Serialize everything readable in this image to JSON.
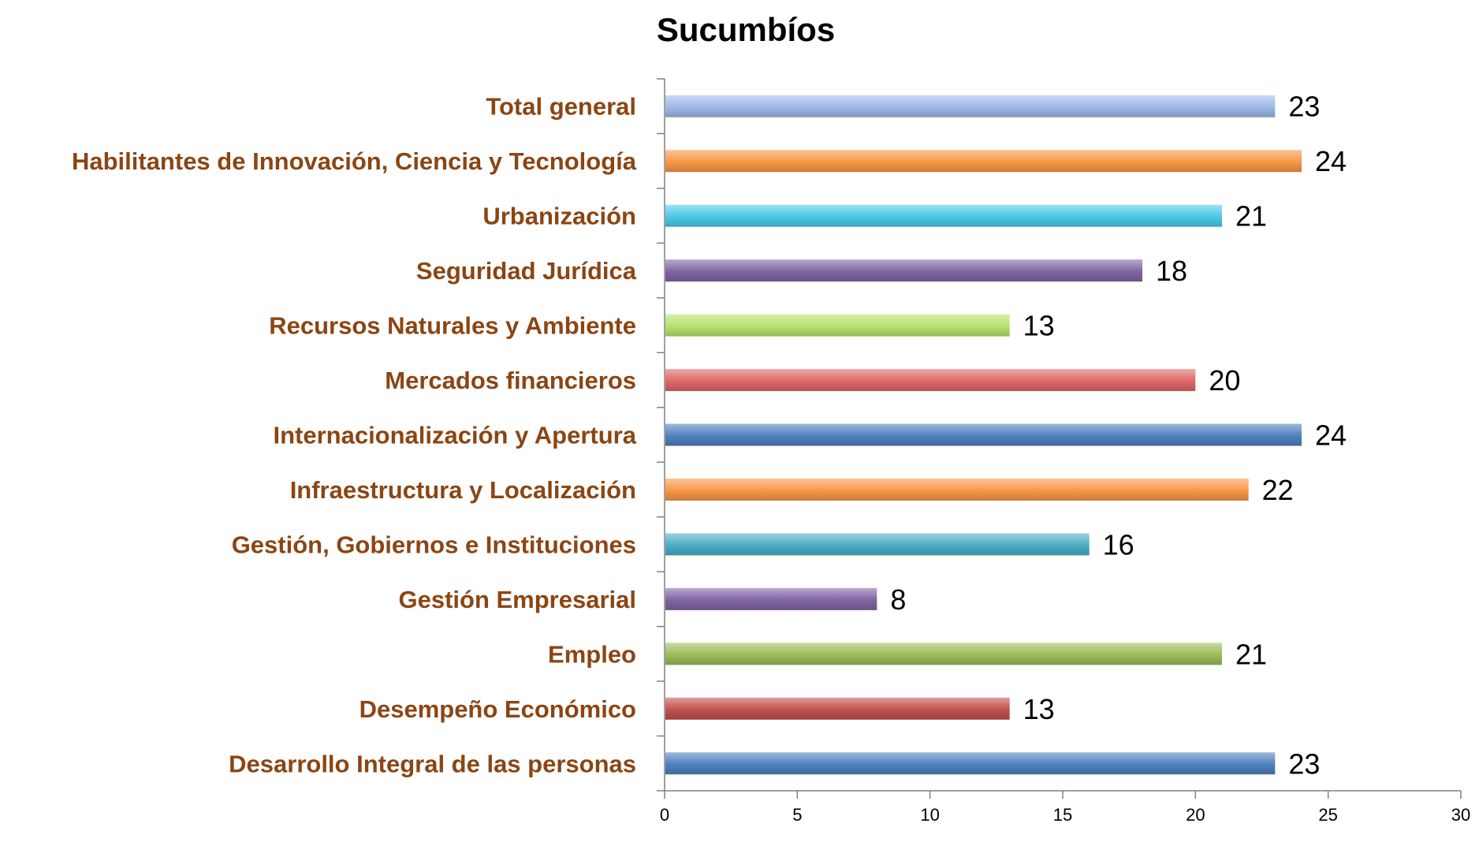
{
  "chart_data": {
    "type": "bar",
    "orientation": "horizontal",
    "title": "Sucumbíos",
    "xlabel": "",
    "ylabel": "",
    "xlim": [
      0,
      30
    ],
    "xticks": [
      "0",
      "5",
      "10",
      "15",
      "20",
      "25",
      "30"
    ],
    "grid": false,
    "legend": "none",
    "categories": [
      "Total general",
      "Habilitantes de Innovación, Ciencia y Tecnología",
      "Urbanización",
      "Seguridad Jurídica",
      "Recursos Naturales y Ambiente",
      "Mercados financieros",
      "Internacionalización y Apertura",
      "Infraestructura y Localización",
      "Gestión, Gobiernos e Instituciones",
      "Gestión Empresarial",
      "Empleo",
      "Desempeño Económico",
      "Desarrollo Integral de las personas"
    ],
    "values": [
      23,
      24,
      21,
      18,
      13,
      20,
      24,
      22,
      16,
      8,
      21,
      13,
      23
    ],
    "value_labels": [
      "23",
      "24",
      "21",
      "18",
      "13",
      "20",
      "24",
      "22",
      "16",
      "8",
      "21",
      "13",
      "23"
    ],
    "colors": [
      "#9DB9E8",
      "#F79646",
      "#4BC8E8",
      "#8064A2",
      "#B5E36C",
      "#E06666",
      "#4F81BD",
      "#F79646",
      "#4BACC6",
      "#8064A2",
      "#9BBB59",
      "#C0504D",
      "#4F81BD"
    ]
  }
}
